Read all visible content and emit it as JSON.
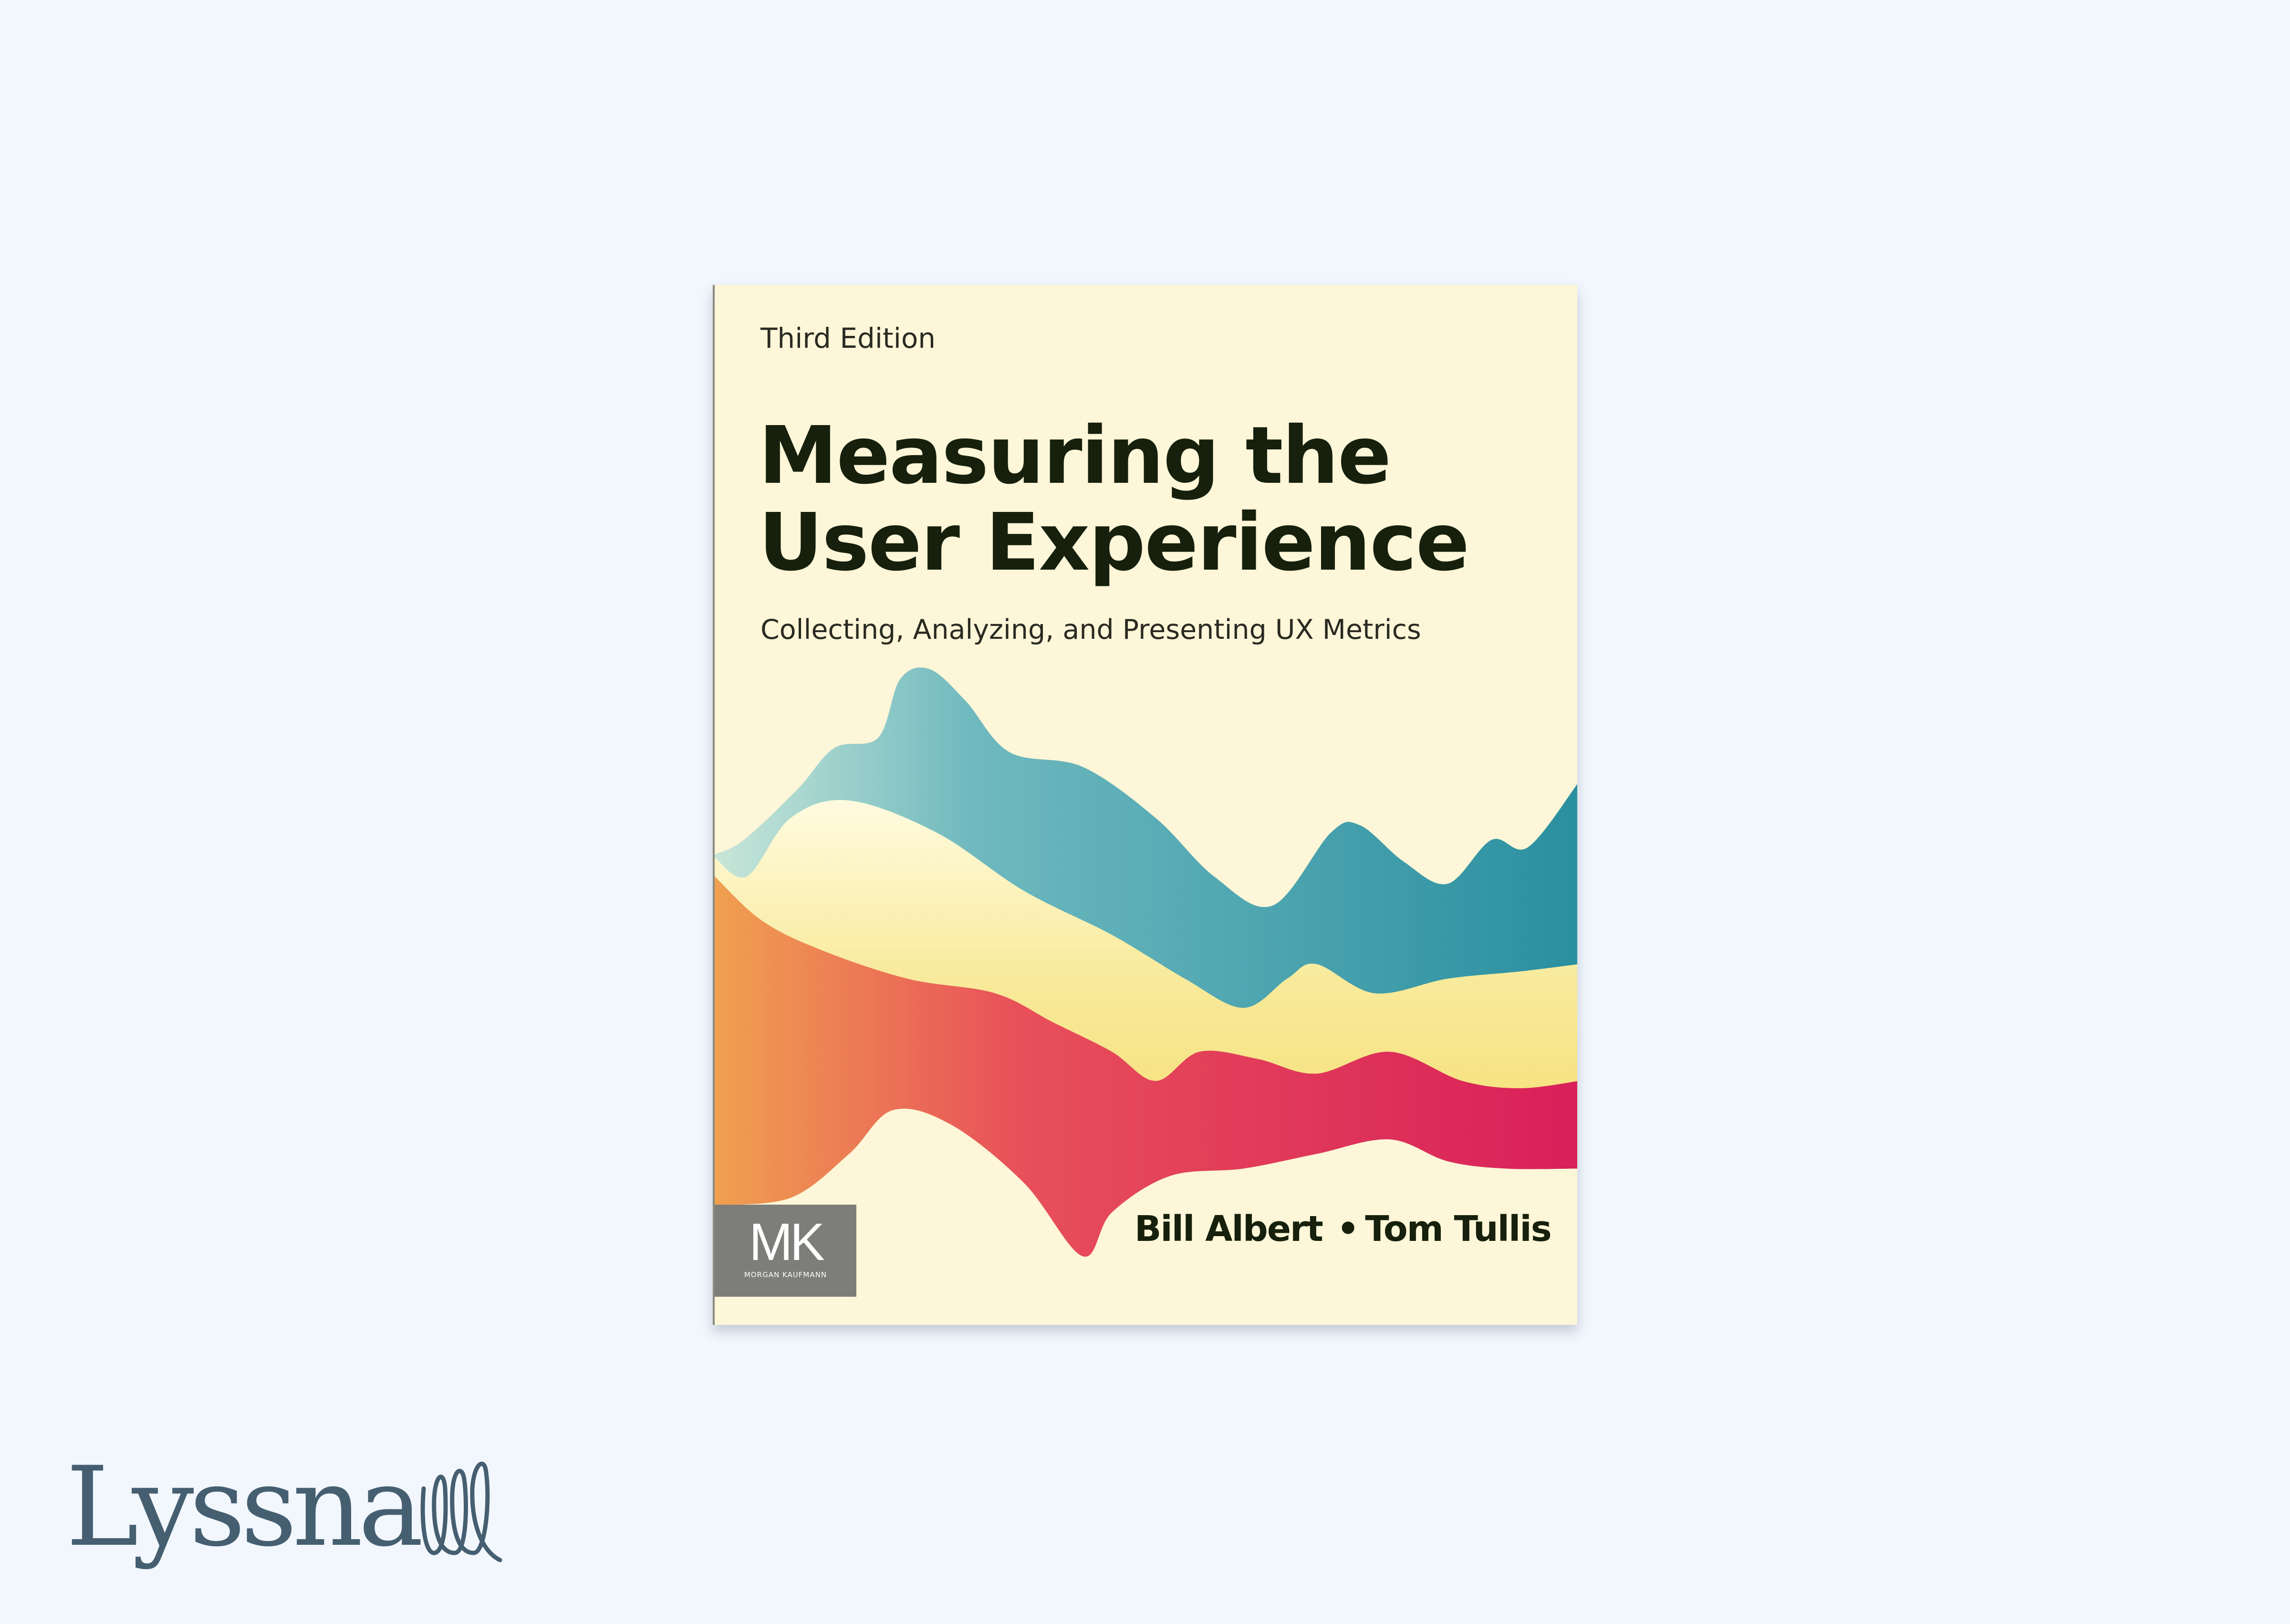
{
  "book": {
    "edition": "Third Edition",
    "title_line1": "Measuring the",
    "title_line2": "User Experience",
    "subtitle": "Collecting, Analyzing, and Presenting UX Metrics",
    "authors": [
      "Bill Albert",
      "Tom Tullis"
    ],
    "author_separator": "•",
    "publisher": {
      "logo": "MK",
      "name": "MORGAN KAUFMANN"
    },
    "colors": {
      "background": "#fdf6d8",
      "teal": "#2a8fa0",
      "yellow": "#f7e27a",
      "orange": "#f0a050",
      "magenta": "#d81f5a"
    }
  },
  "brand": {
    "name": "Lyssna",
    "color": "#455f71"
  },
  "page": {
    "background": "#f2f7fd"
  }
}
